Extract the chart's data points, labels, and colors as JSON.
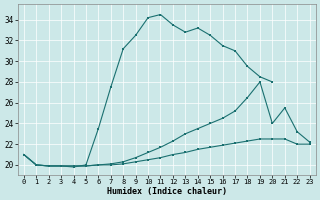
{
  "xlabel": "Humidex (Indice chaleur)",
  "bg_color": "#cce8e8",
  "grid_color": "#aacccc",
  "line_color": "#1a7070",
  "xlim": [
    -0.5,
    23.5
  ],
  "ylim": [
    19.0,
    35.5
  ],
  "yticks": [
    20,
    22,
    24,
    26,
    28,
    30,
    32,
    34
  ],
  "xticks": [
    0,
    1,
    2,
    3,
    4,
    5,
    6,
    7,
    8,
    9,
    10,
    11,
    12,
    13,
    14,
    15,
    16,
    17,
    18,
    19,
    20,
    21,
    22,
    23
  ],
  "line1_x": [
    0,
    1,
    2,
    3,
    4,
    5,
    6,
    7,
    8,
    9,
    10,
    11,
    12,
    13,
    14,
    15,
    16,
    17,
    18,
    19,
    20
  ],
  "line1_y": [
    21.0,
    20.0,
    19.9,
    19.9,
    19.8,
    20.0,
    23.5,
    27.5,
    31.2,
    32.5,
    34.2,
    34.5,
    33.5,
    32.8,
    33.2,
    32.5,
    31.5,
    31.0,
    29.5,
    28.5,
    28.0
  ],
  "line2_x": [
    0,
    1,
    2,
    3,
    4,
    5,
    6,
    7,
    8,
    9,
    10,
    11,
    12,
    13,
    14,
    15,
    16,
    17,
    18,
    19,
    20,
    21,
    22,
    23
  ],
  "line2_y": [
    21.0,
    20.0,
    19.9,
    19.9,
    19.9,
    19.9,
    20.0,
    20.1,
    20.3,
    20.7,
    21.2,
    21.7,
    22.3,
    23.0,
    23.5,
    24.0,
    24.5,
    25.2,
    26.5,
    28.0,
    24.0,
    25.5,
    23.2,
    22.2
  ],
  "line3_x": [
    0,
    1,
    2,
    3,
    4,
    5,
    6,
    7,
    8,
    9,
    10,
    11,
    12,
    13,
    14,
    15,
    16,
    17,
    18,
    19,
    20,
    21,
    22,
    23
  ],
  "line3_y": [
    21.0,
    20.0,
    19.9,
    19.9,
    19.9,
    19.9,
    20.0,
    20.0,
    20.1,
    20.3,
    20.5,
    20.7,
    21.0,
    21.2,
    21.5,
    21.7,
    21.9,
    22.1,
    22.3,
    22.5,
    22.5,
    22.5,
    22.0,
    22.0
  ]
}
